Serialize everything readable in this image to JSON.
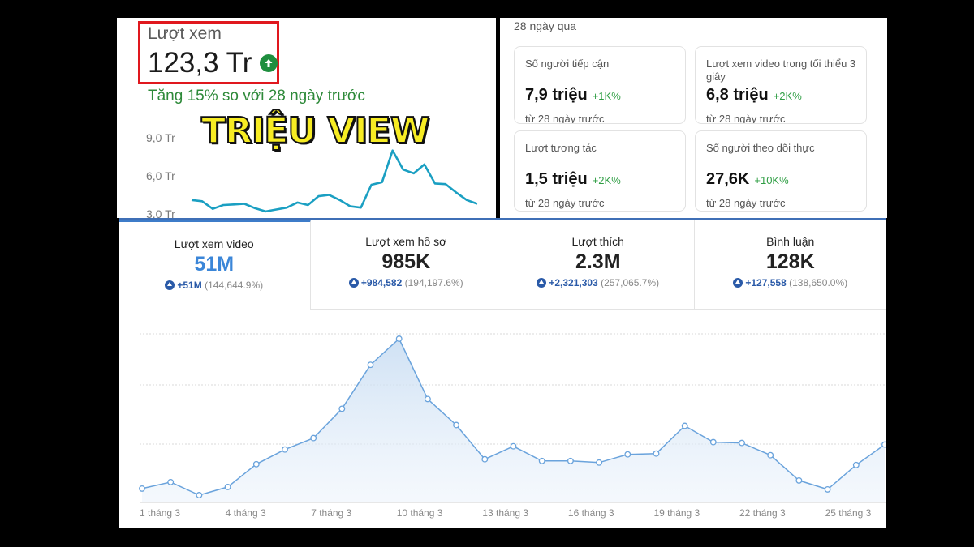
{
  "views_panel": {
    "label": "Lượt xem",
    "value": "123,3 Tr",
    "change_text": "Tăng 15% so với 28 ngày trước",
    "overlay_text": "TRIỆU VIEW",
    "y_ticks": [
      "9,0 Tr",
      "6,0 Tr",
      "3,0 Tr"
    ],
    "highlight_color": "#e0181e",
    "line_color": "#1a9fc2"
  },
  "stats_panel": {
    "period": "28 ngày qua",
    "cards": [
      {
        "label": "Số người tiếp cận",
        "value": "7,9 triệu",
        "delta": "+1K%",
        "sub": "từ 28 ngày trước"
      },
      {
        "label": "Lượt xem video trong tối thiểu 3 giây",
        "value": "6,8 triệu",
        "delta": "+2K%",
        "sub": "từ 28 ngày trước"
      },
      {
        "label": "Lượt tương tác",
        "value": "1,5 triệu",
        "delta": "+2K%",
        "sub": "từ 28 ngày trước"
      },
      {
        "label": "Số người theo dõi thực",
        "value": "27,6K",
        "delta": "+10K%",
        "sub": "từ 28 ngày trước"
      }
    ]
  },
  "tabs": [
    {
      "label": "Lượt xem video",
      "value": "51M",
      "change_amount": "+51M",
      "change_pct": "(144,644.9%)",
      "active": true
    },
    {
      "label": "Lượt xem hồ sơ",
      "value": "985K",
      "change_amount": "+984,582",
      "change_pct": "(194,197.6%)",
      "active": false
    },
    {
      "label": "Lượt thích",
      "value": "2.3M",
      "change_amount": "+2,321,303",
      "change_pct": "(257,065.7%)",
      "active": false
    },
    {
      "label": "Bình luận",
      "value": "128K",
      "change_amount": "+127,558",
      "change_pct": "(138,650.0%)",
      "active": false
    }
  ],
  "chart_data": [
    {
      "type": "line",
      "title": "Lượt xem",
      "y_ticks": [
        "9,0 Tr",
        "6,0 Tr",
        "3,0 Tr"
      ],
      "ylim": [
        3.0,
        9.0
      ],
      "values": [
        4.1,
        4.0,
        3.4,
        3.7,
        3.75,
        3.8,
        3.45,
        3.2,
        3.35,
        3.5,
        3.9,
        3.7,
        4.4,
        4.5,
        4.1,
        3.6,
        3.5,
        5.3,
        5.5,
        8.0,
        6.5,
        6.2,
        6.9,
        5.4,
        5.35,
        4.7,
        4.1,
        3.8
      ]
    },
    {
      "type": "area",
      "title": "Lượt xem video",
      "x_labels": [
        "1 tháng 3",
        "4 tháng 3",
        "7 tháng 3",
        "10 tháng 3",
        "13 tháng 3",
        "16 tháng 3",
        "19 tháng 3",
        "22 tháng 3",
        "25 tháng 3"
      ],
      "x": [
        1,
        2,
        3,
        4,
        5,
        6,
        7,
        8,
        9,
        10,
        11,
        12,
        13,
        14,
        15,
        16,
        17,
        18,
        19,
        20,
        21,
        22,
        23,
        24,
        25,
        26,
        27
      ],
      "ylim": [
        0,
        10
      ],
      "grid": true,
      "series": [
        {
          "name": "Lượt xem video",
          "color": "#6aa3dc",
          "values": [
            0.8,
            1.2,
            0.4,
            0.9,
            2.3,
            3.2,
            3.9,
            5.7,
            8.4,
            10.0,
            6.3,
            4.7,
            2.6,
            3.4,
            2.5,
            2.5,
            2.4,
            2.9,
            2.95,
            4.65,
            3.65,
            3.6,
            2.85,
            1.3,
            0.75,
            2.25,
            3.5
          ]
        }
      ]
    }
  ]
}
